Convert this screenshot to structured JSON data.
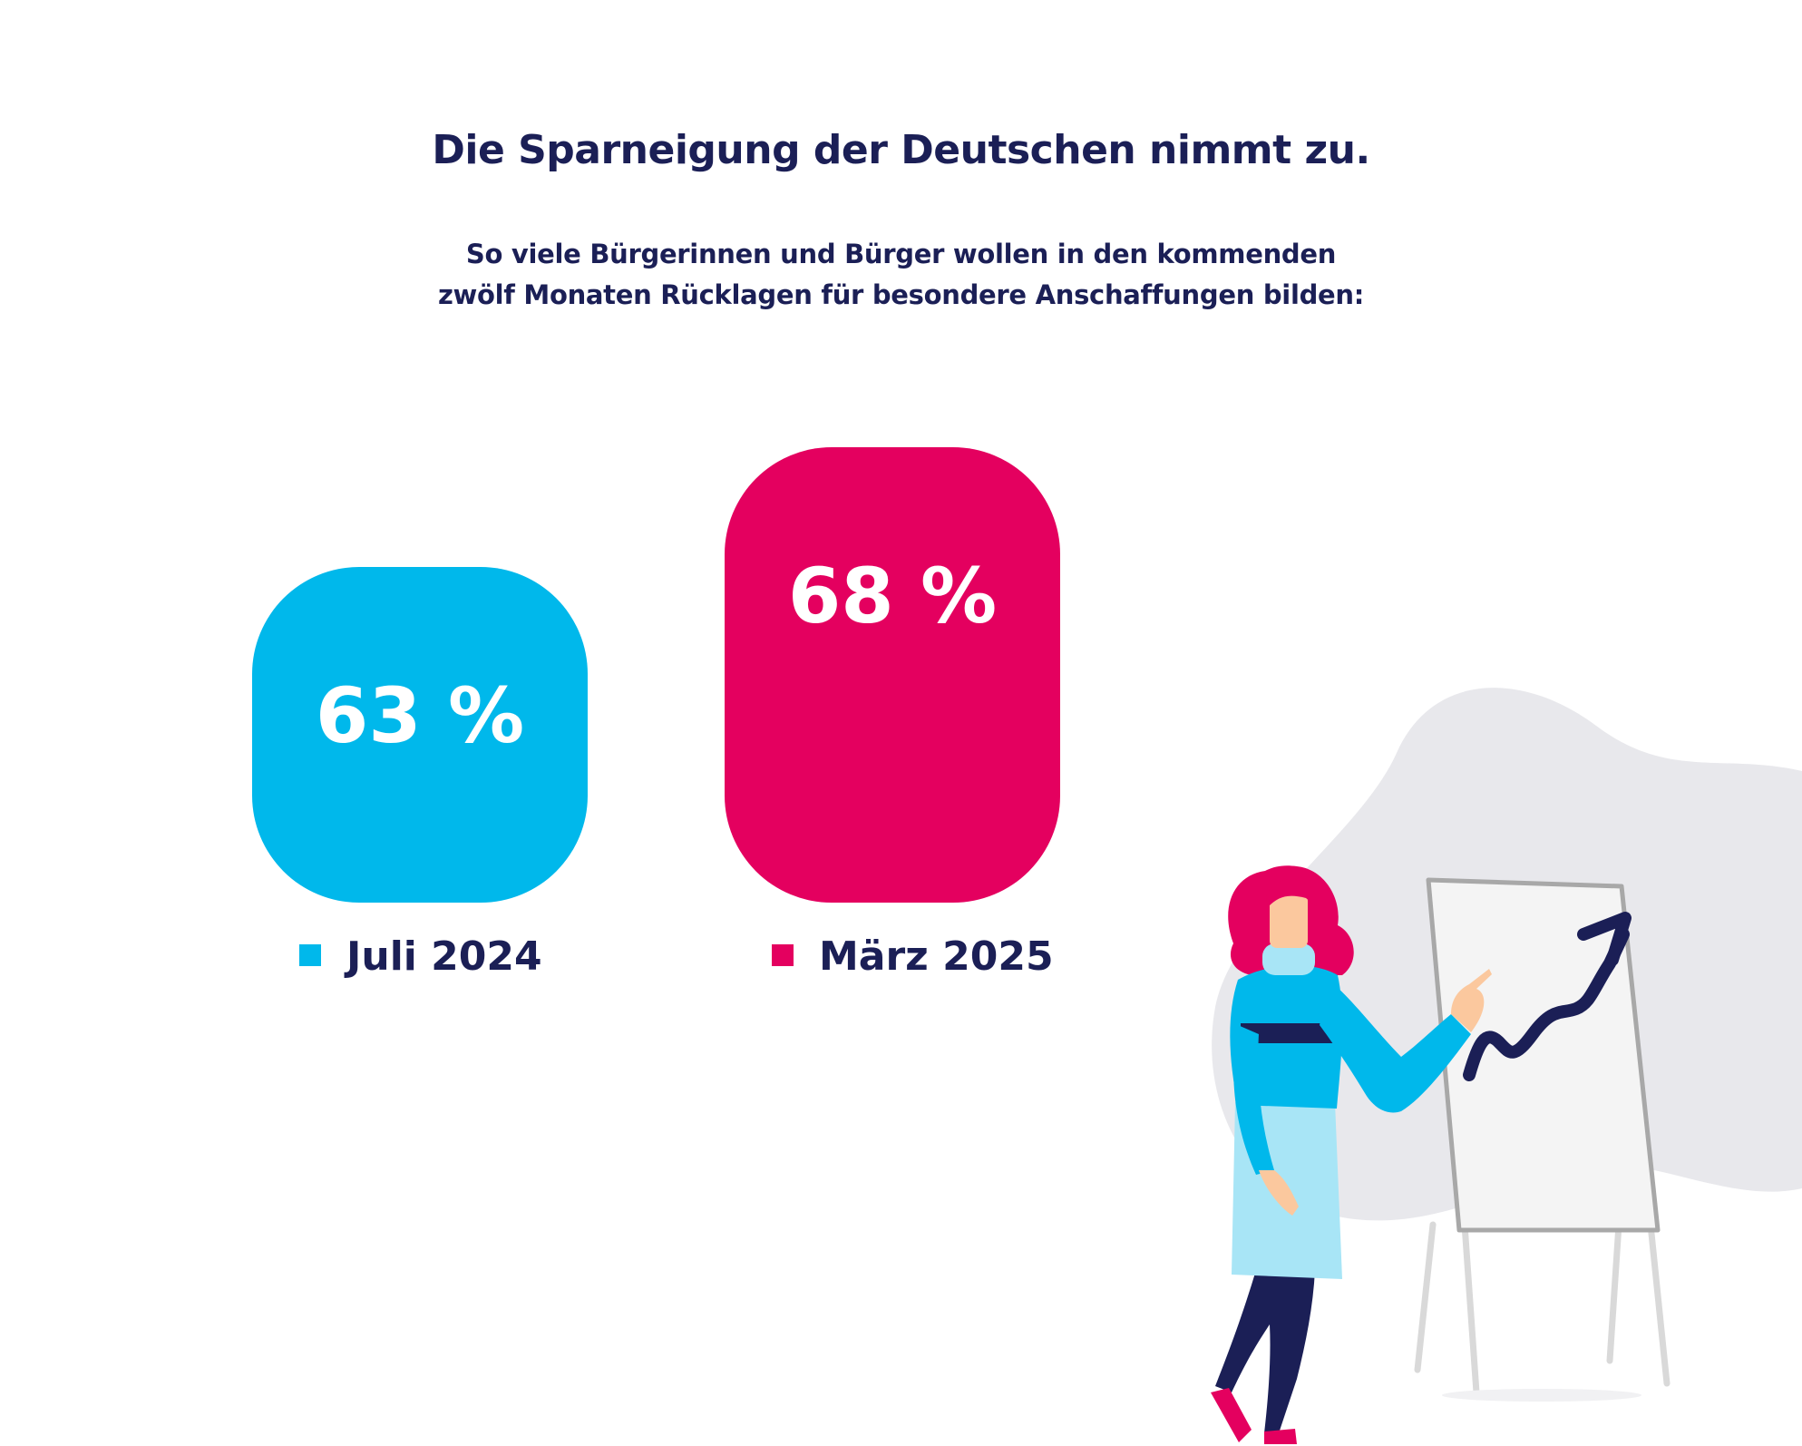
{
  "title": "Die Sparneigung der Deutschen nimmt zu.",
  "subtitle_lines": [
    "So viele Bürgerinnen und Bürger wollen in den kommenden",
    "zwölf Monaten Rücklagen für besondere Anschaffungen bilden:"
  ],
  "chart_data": {
    "type": "bar",
    "categories": [
      "Juli 2024",
      "März 2025"
    ],
    "values": [
      63,
      68
    ],
    "value_labels": [
      "63 %",
      "68 %"
    ],
    "colors": [
      "#00b8eb",
      "#e4005f"
    ],
    "legend_placement": "bottom",
    "grid": false
  },
  "illustration": {
    "name": "woman-presenting-growth-chart",
    "colors": {
      "hair": "#e4005f",
      "sweater": "#00b8eb",
      "skirt": "#a8e5f6",
      "legs": "#1b1f56",
      "skin": "#fbc89e",
      "arrow": "#1b1f56",
      "blob": "#e8e8ec"
    }
  }
}
